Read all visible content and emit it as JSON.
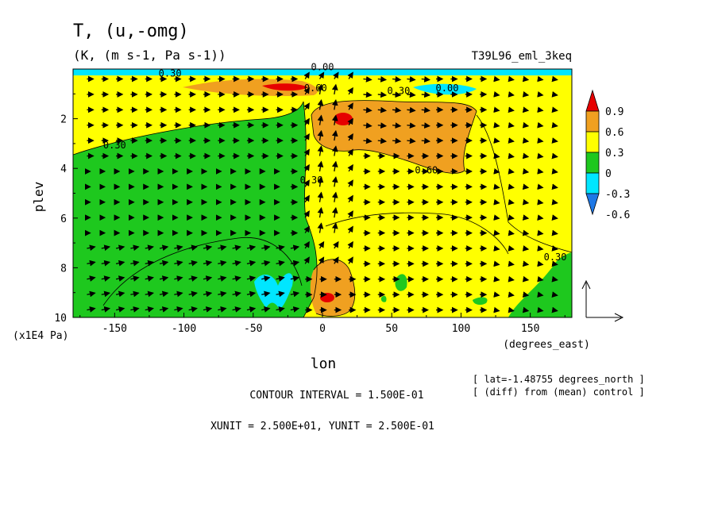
{
  "chart_data": {
    "type": "heatmap",
    "title": "T, (u,-omg)",
    "subtitle": "(K, (m s-1, Pa s-1))",
    "run_label": "T39L96_eml_3keq",
    "xlabel": "lon",
    "x_unit_label": "(degrees_east)",
    "ylabel": "plev",
    "y_unit_label": "(x1E4 Pa)",
    "xlim": [
      -180,
      180
    ],
    "ylim": [
      10,
      0
    ],
    "x_ticks": [
      -150,
      -100,
      -50,
      0,
      50,
      100,
      150
    ],
    "x_tick_labels": [
      "-150",
      "-100",
      "-50",
      "0",
      "50",
      "100",
      "150"
    ],
    "y_ticks": [
      2,
      4,
      6,
      8,
      10
    ],
    "y_tick_labels": [
      "2",
      "4",
      "6",
      "8",
      "10"
    ],
    "colorbar": {
      "levels": [
        -0.6,
        -0.3,
        0,
        0.3,
        0.6,
        0.9
      ],
      "labels": [
        "-0.6",
        "-0.3",
        "0",
        "0.3",
        "0.6",
        "0.9"
      ],
      "colors": [
        "#1e78e6",
        "#00e6ff",
        "#1ec81e",
        "#ffff00",
        "#f0a020",
        "#e60000",
        "#cc0000"
      ]
    },
    "contour_labels": [
      {
        "text": "0.30",
        "lon": -150,
        "plev": 3.2
      },
      {
        "text": "0.30",
        "lon": -8,
        "plev": 4.6
      },
      {
        "text": "0.30",
        "lon": 55,
        "plev": 1.0
      },
      {
        "text": "0.30",
        "lon": 168,
        "plev": 7.7
      },
      {
        "text": "0.60",
        "lon": 75,
        "plev": 4.2
      },
      {
        "text": "0.60",
        "lon": -5,
        "plev": 0.9
      },
      {
        "text": "0.00",
        "lon": 90,
        "plev": 0.9
      },
      {
        "text": "0.30",
        "lon": -110,
        "plev": 0.3
      },
      {
        "text": "0.00",
        "lon": 0,
        "plev": 0.05
      }
    ],
    "info_lines": [
      "CONTOUR INTERVAL = 1.500E-01",
      "XUNIT = 2.500E+01, YUNIT = 2.500E-01"
    ],
    "annotations": [
      "[ lat=-1.48755 degrees_north ]",
      "[ (diff) from (mean) control ]"
    ],
    "vector_field": "(u,-omg) arrows on regular grid",
    "grid": false,
    "legend_placement": "right"
  }
}
